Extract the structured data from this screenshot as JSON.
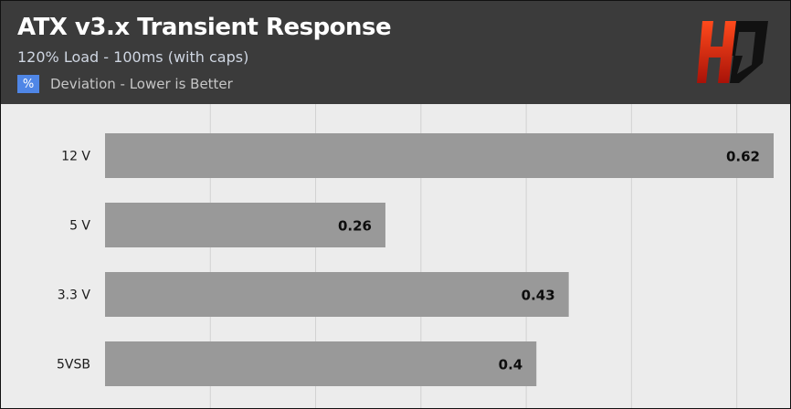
{
  "chart_data": {
    "type": "bar",
    "orientation": "horizontal",
    "title": "ATX v3.x Transient Response",
    "subtitle": "120% Load - 100ms (with caps)",
    "legend_entries": [
      {
        "symbol": "%",
        "label": "Deviation - Lower is Better"
      }
    ],
    "categories": [
      "12 V",
      "5 V",
      "3.3 V",
      "5VSB"
    ],
    "series": [
      {
        "name": "Deviation - Lower is Better",
        "values": [
          0.62,
          0.26,
          0.43,
          0.4
        ]
      }
    ],
    "xlim": [
      0,
      0.62
    ],
    "grid": true,
    "legend_position": "top-left",
    "colors": {
      "bar": "#999999",
      "header": "#3b3b3b",
      "legend_swatch": "#4f86e6",
      "plot_background": "#ececec",
      "grid": "#d2d2d2"
    }
  },
  "logo": {
    "text": "HB"
  }
}
